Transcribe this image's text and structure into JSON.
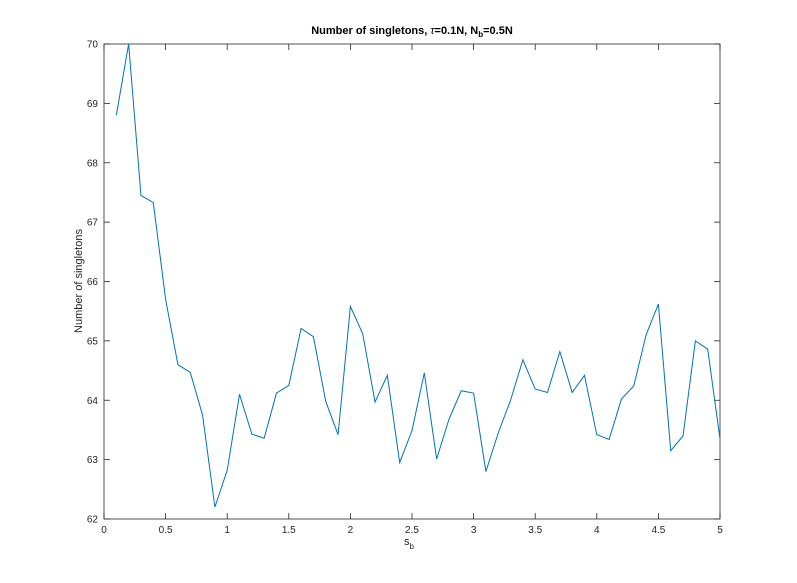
{
  "chart_data": {
    "type": "line",
    "title": {
      "prefix": "Number of singletons, ",
      "tau": "τ",
      "tau_value": "=0.1N, N",
      "sub": "b",
      "suffix": "=0.5N"
    },
    "xlabel": {
      "main": "s",
      "sub": "b"
    },
    "ylabel": "Number of singletons",
    "xlim": [
      0,
      5
    ],
    "ylim": [
      62,
      70
    ],
    "xticks": [
      0,
      0.5,
      1,
      1.5,
      2,
      2.5,
      3,
      3.5,
      4,
      4.5,
      5
    ],
    "xtick_labels": [
      "0",
      "0.5",
      "1",
      "1.5",
      "2",
      "2.5",
      "3",
      "3.5",
      "4",
      "4.5",
      "5"
    ],
    "yticks": [
      62,
      63,
      64,
      65,
      66,
      67,
      68,
      69,
      70
    ],
    "ytick_labels": [
      "62",
      "63",
      "64",
      "65",
      "66",
      "67",
      "68",
      "69",
      "70"
    ],
    "grid": false,
    "line_color": "#0072bd",
    "series": [
      {
        "x": [
          0.1,
          0.2,
          0.3,
          0.4,
          0.5,
          0.6,
          0.7,
          0.8,
          0.9,
          1.0,
          1.1,
          1.2,
          1.3,
          1.4,
          1.5,
          1.6,
          1.7,
          1.8,
          1.9,
          2.0,
          2.1,
          2.2,
          2.3,
          2.4,
          2.5,
          2.6,
          2.7,
          2.8,
          2.9,
          3.0,
          3.1,
          3.2,
          3.3,
          3.4,
          3.5,
          3.6,
          3.7,
          3.8,
          3.9,
          4.0,
          4.1,
          4.2,
          4.3,
          4.4,
          4.5,
          4.6,
          4.7,
          4.8,
          4.9,
          5.0
        ],
        "values": [
          68.8,
          70.0,
          67.45,
          67.33,
          65.7,
          64.6,
          64.47,
          63.75,
          62.2,
          62.82,
          64.1,
          63.43,
          63.36,
          64.12,
          64.25,
          65.21,
          65.07,
          63.98,
          63.42,
          65.58,
          65.12,
          63.97,
          64.42,
          62.95,
          63.49,
          64.46,
          63.01,
          63.68,
          64.16,
          64.12,
          62.8,
          63.45,
          64.0,
          64.68,
          64.19,
          64.13,
          64.82,
          64.13,
          64.42,
          63.42,
          63.34,
          64.02,
          64.24,
          65.1,
          65.62,
          63.15,
          63.4,
          65.0,
          64.86,
          63.35
        ]
      }
    ]
  }
}
